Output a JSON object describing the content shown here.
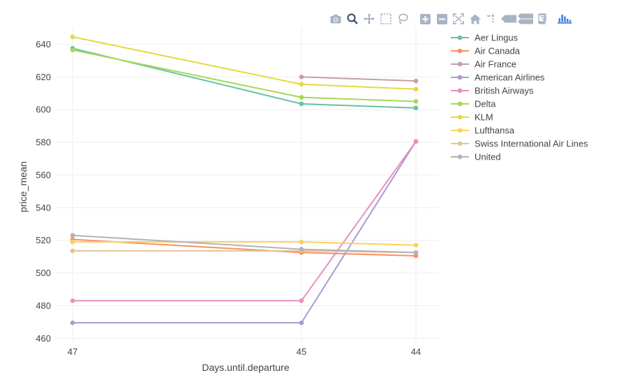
{
  "chart_data": {
    "type": "line",
    "xlabel": "Days.until.departure",
    "ylabel": "price_mean",
    "categories": [
      "47",
      "45",
      "44"
    ],
    "ylim": [
      458,
      650
    ],
    "yticks": [
      460,
      480,
      500,
      520,
      540,
      560,
      580,
      600,
      620,
      640
    ],
    "grid": true,
    "legend_position": "top-right",
    "series": [
      {
        "name": "Aer Lingus",
        "color": "#66c2a5",
        "values": [
          637.5,
          603.5,
          601
        ]
      },
      {
        "name": "Air Canada",
        "color": "#fc8d62",
        "values": [
          520.5,
          512.5,
          510.5
        ]
      },
      {
        "name": "Air France",
        "color": "#c59da6",
        "values": [
          null,
          620,
          617.5
        ]
      },
      {
        "name": "American Airlines",
        "color": "#a99cd0",
        "values": [
          469.5,
          469.5,
          580.5
        ]
      },
      {
        "name": "British Airways",
        "color": "#e990bd",
        "values": [
          483,
          483,
          580.5
        ]
      },
      {
        "name": "Delta",
        "color": "#a6d854",
        "values": [
          636.5,
          607.5,
          605
        ]
      },
      {
        "name": "KLM",
        "color": "#e5d93d",
        "values": [
          644.5,
          615.5,
          612.5
        ]
      },
      {
        "name": "Lufthansa",
        "color": "#f8d260",
        "values": [
          519,
          519,
          517
        ]
      },
      {
        "name": "Swiss International Air Lines",
        "color": "#e3c395",
        "values": [
          513.5,
          513.5,
          512.5
        ]
      },
      {
        "name": "United",
        "color": "#b3b3b3",
        "values": [
          523,
          514.5,
          512.5
        ]
      }
    ]
  },
  "modebar": {
    "buttons": [
      {
        "name": "camera-icon"
      },
      {
        "name": "zoom-icon"
      },
      {
        "name": "pan-icon"
      },
      {
        "name": "box-select-icon"
      },
      {
        "name": "lasso-select-icon"
      },
      {
        "name": "zoom-in-icon"
      },
      {
        "name": "zoom-out-icon"
      },
      {
        "name": "autoscale-icon"
      },
      {
        "name": "reset-axes-icon"
      },
      {
        "name": "spike-lines-icon"
      },
      {
        "name": "hover-closest-icon"
      },
      {
        "name": "hover-compare-icon"
      },
      {
        "name": "edit-chart-icon"
      },
      {
        "name": "plotly-logo-icon"
      }
    ]
  }
}
